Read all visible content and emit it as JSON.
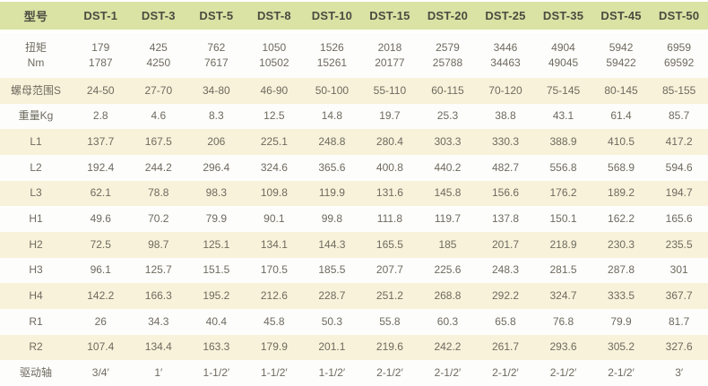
{
  "colors": {
    "header_bg": "#dae2a4",
    "header_text": "#4c4b40",
    "row_cream": "#f9f2da",
    "row_white": "#fdfdfb",
    "data_text": "#6e6a5f"
  },
  "chart_data": {
    "type": "table",
    "header": [
      "型号",
      "DST-1",
      "DST-3",
      "DST-5",
      "DST-8",
      "DST-10",
      "DST-15",
      "DST-20",
      "DST-25",
      "DST-35",
      "DST-45",
      "DST-50"
    ],
    "rows": [
      {
        "label": "扭矩\nNm",
        "tall": true,
        "values": [
          "179\n1787",
          "425\n4250",
          "762\n7617",
          "1050\n10502",
          "1526\n15261",
          "2018\n20177",
          "2579\n25788",
          "3446\n34463",
          "4904\n49045",
          "5942\n59422",
          "6959\n69592"
        ]
      },
      {
        "label": "螺母范围S",
        "values": [
          "24-50",
          "27-70",
          "34-80",
          "46-90",
          "50-100",
          "55-110",
          "60-115",
          "70-120",
          "75-145",
          "80-145",
          "85-155"
        ]
      },
      {
        "label": "重量Kg",
        "values": [
          "2.8",
          "4.6",
          "8.3",
          "12.5",
          "14.8",
          "19.7",
          "25.3",
          "38.8",
          "43.1",
          "61.4",
          "85.7"
        ]
      },
      {
        "label": "L1",
        "values": [
          "137.7",
          "167.5",
          "206",
          "225.1",
          "248.8",
          "280.4",
          "303.3",
          "330.3",
          "388.9",
          "410.5",
          "417.2"
        ]
      },
      {
        "label": "L2",
        "values": [
          "192.4",
          "244.2",
          "296.4",
          "324.6",
          "365.6",
          "400.8",
          "440.2",
          "482.7",
          "556.8",
          "568.9",
          "594.6"
        ]
      },
      {
        "label": "L3",
        "values": [
          "62.1",
          "78.8",
          "98.3",
          "109.8",
          "119.9",
          "131.6",
          "145.8",
          "156.6",
          "176.2",
          "189.2",
          "194.7"
        ]
      },
      {
        "label": "H1",
        "values": [
          "49.6",
          "70.2",
          "79.9",
          "90.1",
          "99.8",
          "111.8",
          "119.7",
          "137.8",
          "150.1",
          "162.2",
          "165.6"
        ]
      },
      {
        "label": "H2",
        "values": [
          "72.5",
          "98.7",
          "125.1",
          "134.1",
          "144.3",
          "165.5",
          "185",
          "201.7",
          "218.9",
          "230.3",
          "235.5"
        ]
      },
      {
        "label": "H3",
        "values": [
          "96.1",
          "125.7",
          "151.5",
          "170.5",
          "185.5",
          "207.7",
          "225.6",
          "248.3",
          "281.5",
          "287.8",
          "301"
        ]
      },
      {
        "label": "H4",
        "values": [
          "142.2",
          "166.3",
          "195.2",
          "212.6",
          "228.7",
          "251.2",
          "268.8",
          "292.2",
          "324.7",
          "333.5",
          "367.7"
        ]
      },
      {
        "label": "R1",
        "values": [
          "26",
          "34.3",
          "40.4",
          "45.8",
          "50.3",
          "55.8",
          "60.3",
          "65.8",
          "76.8",
          "79.9",
          "81.7"
        ]
      },
      {
        "label": "R2",
        "values": [
          "107.4",
          "134.4",
          "163.3",
          "179.9",
          "201.1",
          "219.6",
          "242.2",
          "261.7",
          "293.6",
          "305.2",
          "327.6"
        ]
      },
      {
        "label": "驱动轴",
        "values": [
          "3/4′",
          "1′",
          "1-1/2′",
          "1-1/2′",
          "1-1/2′",
          "2-1/2′",
          "2-1/2′",
          "2-1/2′",
          "2-1/2′",
          "2-1/2′",
          "3′"
        ]
      }
    ]
  }
}
